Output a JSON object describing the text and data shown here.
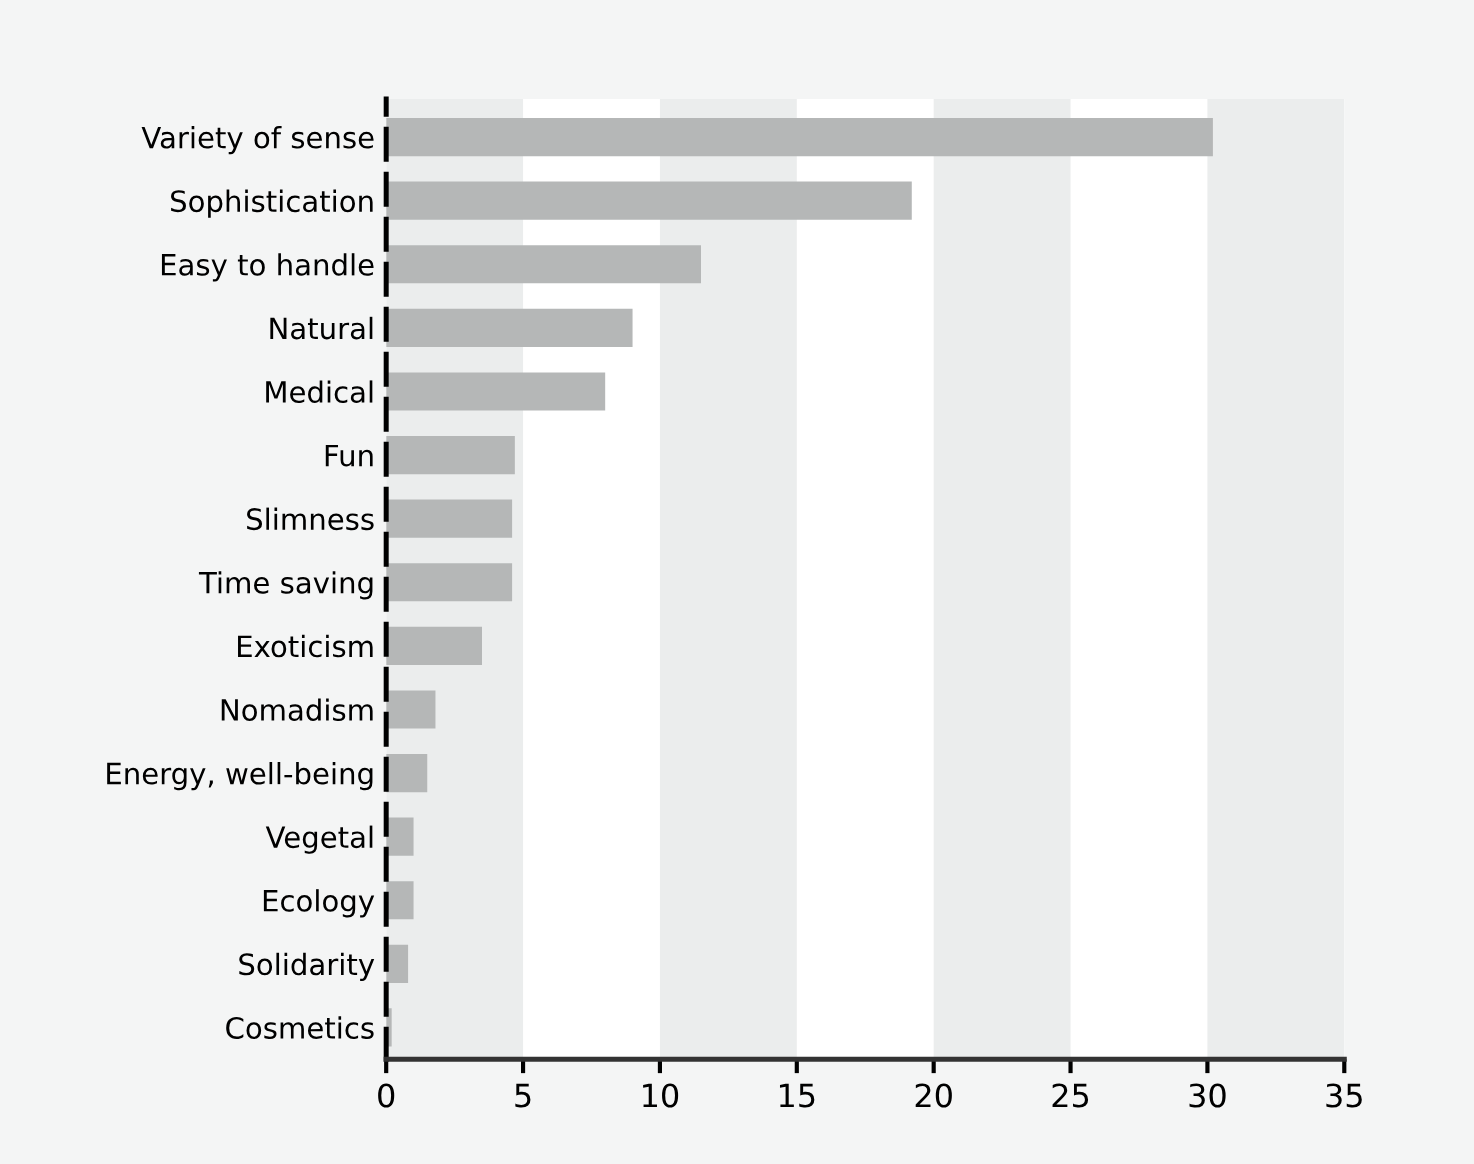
{
  "chart_data": {
    "type": "bar",
    "orientation": "horizontal",
    "categories": [
      "Variety of sense",
      "Sophistication",
      "Easy to handle",
      "Natural",
      "Medical",
      "Fun",
      "Slimness",
      "Time saving",
      "Exoticism",
      "Nomadism",
      "Energy, well-being",
      "Vegetal",
      "Ecology",
      "Solidarity",
      "Cosmetics"
    ],
    "values": [
      30.2,
      19.2,
      11.5,
      9.0,
      8.0,
      4.7,
      4.6,
      4.6,
      3.5,
      1.8,
      1.5,
      1.0,
      1.0,
      0.8,
      0.2
    ],
    "color": "#b5b7b7",
    "xlim": [
      0,
      35
    ],
    "xticks": [
      0,
      5,
      10,
      15,
      20,
      25,
      30,
      35
    ],
    "grid": false,
    "bands": [
      {
        "axis": "x",
        "from": 0,
        "to": 5,
        "color": "#ebeded"
      },
      {
        "axis": "x",
        "from": 10,
        "to": 15,
        "color": "#ebeded"
      },
      {
        "axis": "x",
        "from": 20,
        "to": 25,
        "color": "#ebeded"
      },
      {
        "axis": "x",
        "from": 30,
        "to": 35,
        "color": "#ebeded"
      }
    ]
  }
}
